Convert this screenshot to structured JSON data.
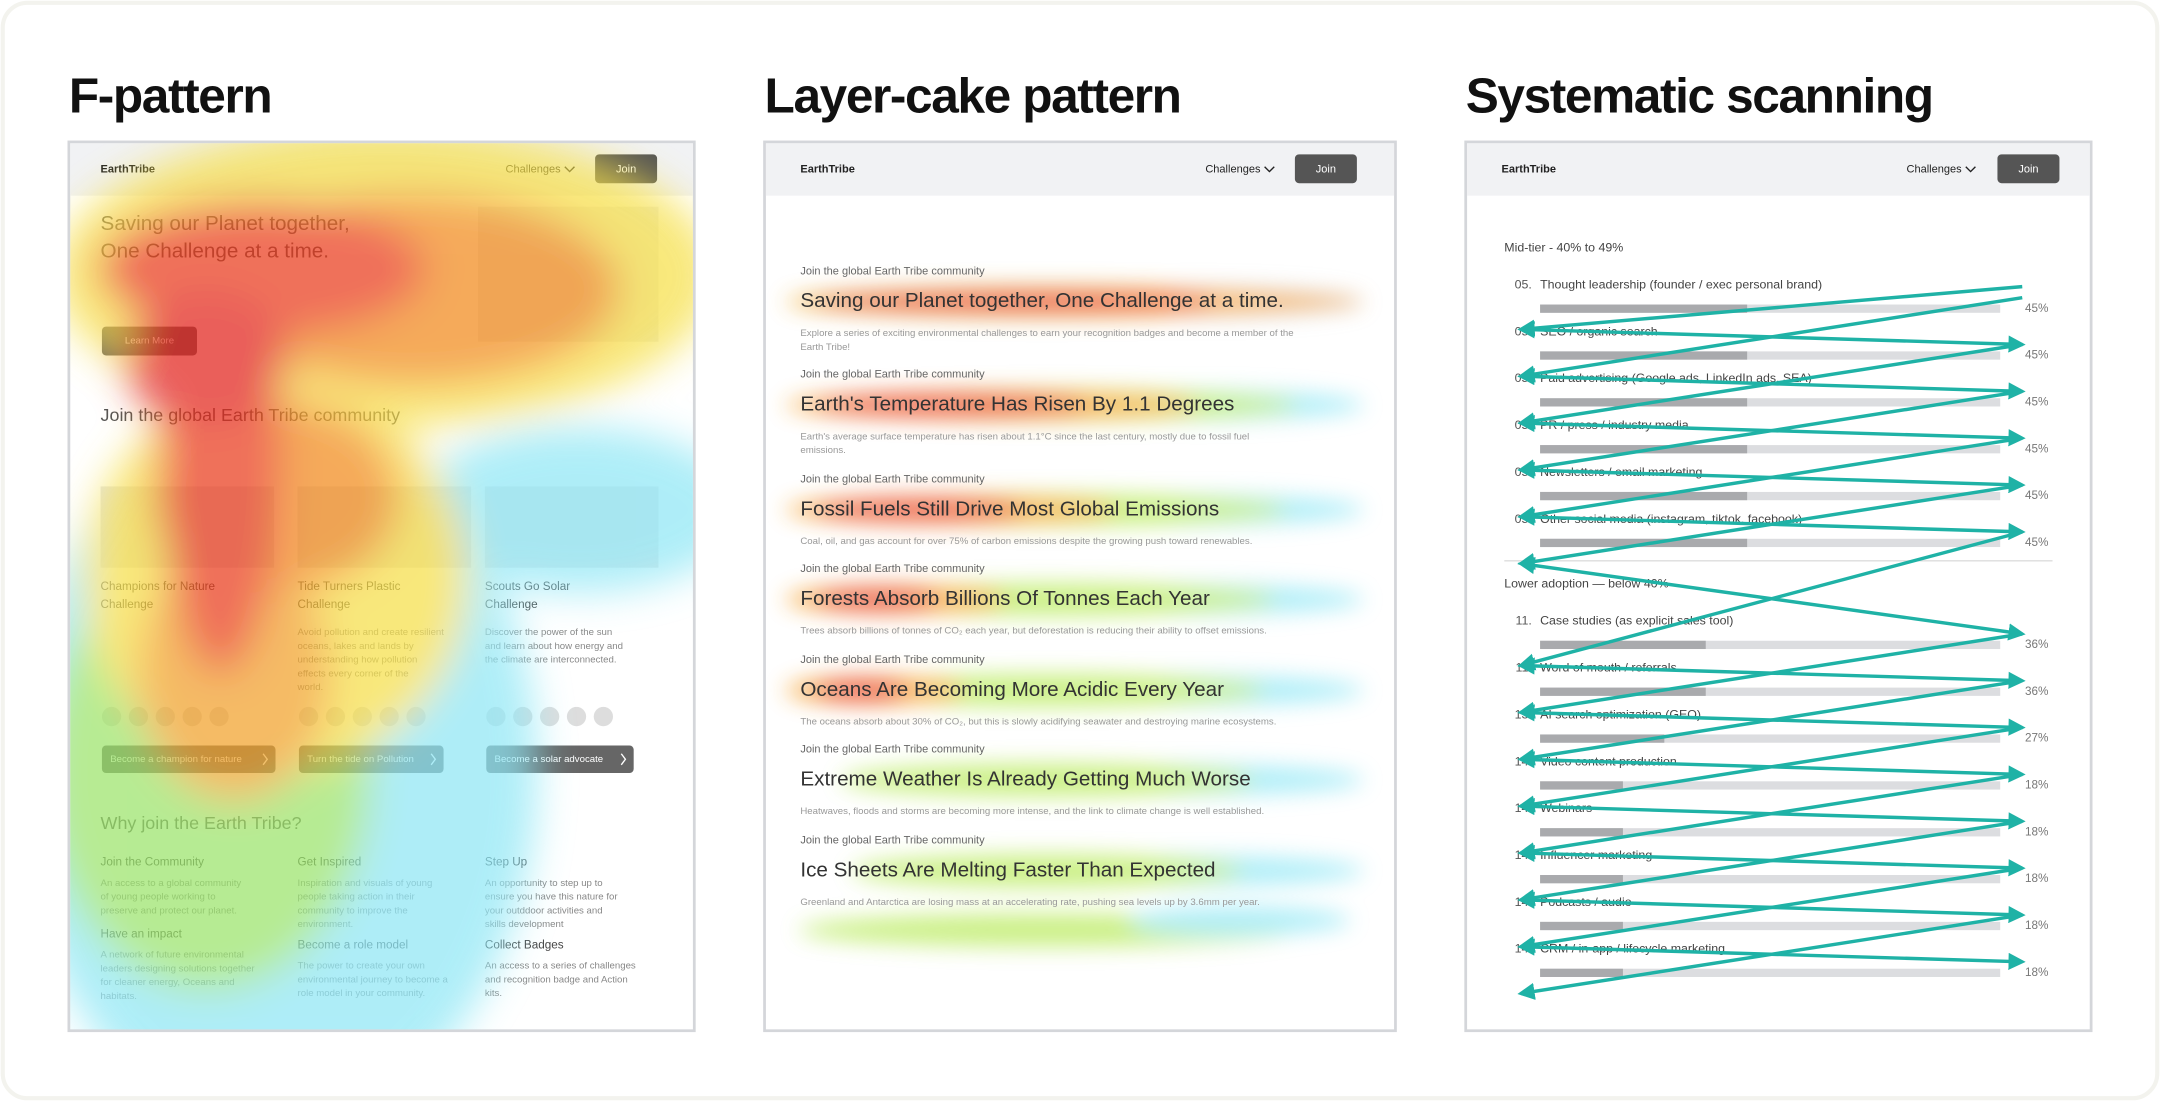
{
  "f_pattern": {
    "title": "F-pattern",
    "nav": {
      "brand": "EarthTribe",
      "menu": "Challenges",
      "button": "Join"
    },
    "hero": {
      "lines": [
        "Saving our Planet together,",
        "One Challenge at a time."
      ],
      "button": "Learn More"
    },
    "community": {
      "heading": "Join the global Earth Tribe community",
      "cards": [
        {
          "title": [
            "Champions for Nature",
            "Challenge"
          ],
          "button": "Become a champion for nature"
        },
        {
          "title": [
            "Tide Turners Plastic",
            "Challenge"
          ],
          "desc": [
            "Avoid pollution and create resilient",
            "oceans, lakes and lands by",
            "understanding how pollution",
            "effects every corner of the",
            "world."
          ],
          "button": "Turn the tide on Pollution"
        },
        {
          "title": [
            "Scouts Go Solar",
            "Challenge"
          ],
          "desc": [
            "Discover the power of  the sun",
            "and learn about how energy and",
            "the climate are interconnected."
          ],
          "button": "Become a solar advocate"
        }
      ]
    },
    "why": {
      "heading": "Why join the Earth Tribe?",
      "features": [
        {
          "title": "Join the Community",
          "desc": [
            "An access to a global community",
            "of young people working to",
            "preserve and protect our planet."
          ]
        },
        {
          "title": "Get Inspired",
          "desc": [
            "Inspiration  and visuals of young",
            "people taking action in their",
            "community to improve the",
            "environment."
          ]
        },
        {
          "title": "Step Up",
          "desc": [
            "An opportunity to step up to",
            "ensure you have this nature for",
            "your outddoor activities and",
            "skills development"
          ]
        },
        {
          "title": "Have an impact",
          "desc": [
            "A network of future environmental",
            "leaders designing solutions together",
            "for cleaner energy, Oceans and",
            "habitats."
          ]
        },
        {
          "title": "Become a role model",
          "desc": [
            "The power to create your own",
            "environmental journey to become a",
            "role model in your community."
          ]
        },
        {
          "title": "Collect Badges",
          "desc": [
            "An access to a series of challenges",
            "and recognition badge and Action",
            "kits."
          ]
        }
      ]
    }
  },
  "layer_cake": {
    "title": "Layer-cake pattern",
    "nav": {
      "brand": "EarthTribe",
      "menu": "Challenges",
      "button": "Join"
    },
    "sections": [
      {
        "kicker": "Join the global Earth Tribe community",
        "headline": "Saving our Planet together, One Challenge at a time.",
        "desc": [
          "Explore a series of exciting environmental challenges to earn your recognition badges and become a member of the",
          "Earth Tribe!"
        ]
      },
      {
        "kicker": "Join the global Earth Tribe community",
        "headline": "Earth's Temperature Has Risen By 1.1 Degrees",
        "desc": [
          "Earth's average surface temperature has risen about 1.1°C since the last century, mostly due to fossil fuel",
          "emissions."
        ]
      },
      {
        "kicker": "Join the global Earth Tribe community",
        "headline": "Fossil Fuels Still Drive Most Global Emissions",
        "desc": [
          "Coal, oil, and gas account for over 75% of carbon emissions despite the growing push toward renewables."
        ]
      },
      {
        "kicker": "Join the global Earth Tribe community",
        "headline": "Forests Absorb Billions Of Tonnes Each Year",
        "desc": [
          "Trees absorb billions of tonnes of CO₂ each year, but deforestation is reducing their ability to offset emissions."
        ]
      },
      {
        "kicker": "Join the global Earth Tribe community",
        "headline": "Oceans Are Becoming More Acidic Every Year",
        "desc": [
          "The oceans absorb about 30% of CO₂, but this is slowly acidifying seawater and destroying marine ecosystems."
        ]
      },
      {
        "kicker": "Join the global Earth Tribe community",
        "headline": "Extreme Weather Is Already Getting Much Worse",
        "desc": [
          "Heatwaves, floods and storms are becoming more intense, and the link to climate change is well established."
        ]
      },
      {
        "kicker": "Join the global Earth Tribe community",
        "headline": "Ice Sheets Are Melting Faster Than Expected",
        "desc": [
          "Greenland and Antarctica are losing mass at an accelerating rate, pushing sea levels up by 3.6mm per year."
        ]
      }
    ]
  },
  "systematic": {
    "title": "Systematic scanning",
    "nav": {
      "brand": "EarthTribe",
      "menu": "Challenges",
      "button": "Join"
    },
    "groups": [
      {
        "title": "Mid-tier - 40% to 49%",
        "items": [
          {
            "rank": "05.",
            "label": "Thought leadership (founder / exec personal brand)",
            "value": 45,
            "value_label": "45%"
          },
          {
            "rank": "05.",
            "label": "SEO / organic search",
            "value": 45,
            "value_label": "45%"
          },
          {
            "rank": "05.",
            "label": "Paid advertising (Google ads, LinkedIn ads, SEA)",
            "value": 45,
            "value_label": "45%"
          },
          {
            "rank": "05.",
            "label": "PR / press / industry media",
            "value": 45,
            "value_label": "45%"
          },
          {
            "rank": "05.",
            "label": "Newsletters / email marketing",
            "value": 45,
            "value_label": "45%"
          },
          {
            "rank": "05.",
            "label": "Other social media (instagram, tiktok, facebook)",
            "value": 45,
            "value_label": "45%"
          }
        ]
      },
      {
        "title": "Lower adoption — below 40%",
        "items": [
          {
            "rank": "11.",
            "label": "Case studies (as explicit sales tool)",
            "value": 36,
            "value_label": "36%"
          },
          {
            "rank": "11.",
            "label": "Word of mouth / referrals",
            "value": 36,
            "value_label": "36%"
          },
          {
            "rank": "13.",
            "label": "AI search optimization (GEO)",
            "value": 27,
            "value_label": "27%"
          },
          {
            "rank": "14.",
            "label": "Video content production",
            "value": 18,
            "value_label": "18%"
          },
          {
            "rank": "14.",
            "label": "Webinars",
            "value": 18,
            "value_label": "18%"
          },
          {
            "rank": "14.",
            "label": "Influencer marketing",
            "value": 18,
            "value_label": "18%"
          },
          {
            "rank": "14.",
            "label": "Podcasts / audio",
            "value": 18,
            "value_label": "18%"
          },
          {
            "rank": "14.",
            "label": "CRM / in-app / lifecycle marketing",
            "value": 18,
            "value_label": "18%"
          }
        ]
      }
    ]
  }
}
